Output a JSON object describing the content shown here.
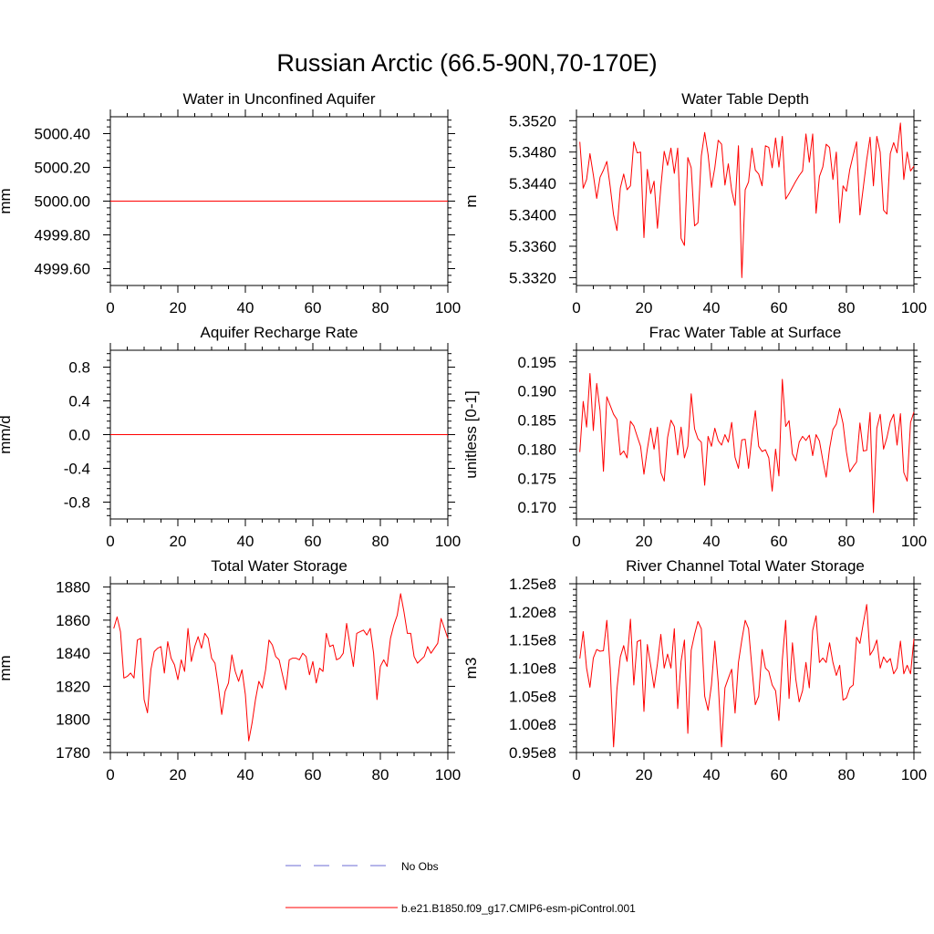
{
  "title": "Russian Arctic (66.5-90N,70-170E)",
  "legend": {
    "entries": [
      {
        "label": "No Obs",
        "color": "#6b6bd6",
        "style": "dashed"
      },
      {
        "label": "b.e21.B1850.f09_g17.CMIP6-esm-piControl.001",
        "color": "#ff0000",
        "style": "solid"
      }
    ]
  },
  "chart_data": [
    {
      "type": "line",
      "title": "Water in Unconfined Aquifer",
      "xlabel": "",
      "ylabel": "mm",
      "xlim": [
        0,
        100
      ],
      "ylim": [
        4999.5,
        5000.5
      ],
      "xticks": [
        0,
        20,
        40,
        60,
        80,
        100
      ],
      "yticks": [
        4999.6,
        4999.8,
        5000.0,
        5000.2,
        5000.4
      ],
      "yticklabels": [
        "4999.60",
        "4999.80",
        "5000.00",
        "5000.20",
        "5000.40"
      ],
      "series": [
        {
          "name": "b.e21.B1850.f09_g17.CMIP6-esm-piControl.001",
          "color": "#ff0000",
          "x": [
            0,
            100
          ],
          "y": [
            5000.0,
            5000.0
          ]
        }
      ]
    },
    {
      "type": "line",
      "title": "Water Table Depth",
      "xlabel": "",
      "ylabel": "m",
      "xlim": [
        0,
        100
      ],
      "ylim": [
        5.331,
        5.3525
      ],
      "xticks": [
        0,
        20,
        40,
        60,
        80,
        100
      ],
      "yticks": [
        5.332,
        5.336,
        5.34,
        5.344,
        5.348,
        5.352
      ],
      "yticklabels": [
        "5.3320",
        "5.3360",
        "5.3400",
        "5.3440",
        "5.3480",
        "5.3520"
      ],
      "series": [
        {
          "name": "b.e21.B1850.f09_g17.CMIP6-esm-piControl.001",
          "color": "#ff0000",
          "x": [
            1,
            2,
            3,
            4,
            5,
            6,
            7,
            8,
            9,
            10,
            11,
            12,
            13,
            14,
            15,
            16,
            17,
            18,
            19,
            20,
            21,
            22,
            23,
            24,
            25,
            26,
            27,
            28,
            29,
            30,
            31,
            32,
            33,
            34,
            35,
            36,
            37,
            38,
            39,
            40,
            41,
            42,
            43,
            44,
            45,
            46,
            47,
            48,
            49,
            50,
            51,
            52,
            53,
            54,
            55,
            56,
            57,
            58,
            59,
            60,
            61,
            62,
            63,
            64,
            65,
            66,
            67,
            68,
            69,
            70,
            71,
            72,
            73,
            74,
            75,
            76,
            77,
            78,
            79,
            80,
            81,
            82,
            83,
            84,
            85,
            86,
            87,
            88,
            89,
            90,
            91,
            92,
            93,
            94,
            95,
            96,
            97,
            98,
            99,
            100
          ],
          "y": [
            5.3493,
            5.3434,
            5.3445,
            5.3478,
            5.3451,
            5.3421,
            5.3448,
            5.3457,
            5.3468,
            5.3436,
            5.34,
            5.338,
            5.3434,
            5.3452,
            5.3432,
            5.3437,
            5.3493,
            5.3479,
            5.348,
            5.3371,
            5.3458,
            5.3427,
            5.3443,
            5.3383,
            5.3435,
            5.3481,
            5.3463,
            5.3485,
            5.3453,
            5.3485,
            5.337,
            5.3361,
            5.3473,
            5.346,
            5.3386,
            5.339,
            5.3475,
            5.3505,
            5.3477,
            5.3435,
            5.346,
            5.3495,
            5.349,
            5.3438,
            5.3465,
            5.3431,
            5.3412,
            5.3488,
            5.332,
            5.3432,
            5.3442,
            5.3485,
            5.3457,
            5.3452,
            5.3437,
            5.3488,
            5.3486,
            5.346,
            5.3498,
            5.3461,
            5.35,
            5.342,
            5.3427,
            5.3435,
            5.3443,
            5.345,
            5.3456,
            5.3503,
            5.3467,
            5.3503,
            5.3402,
            5.3449,
            5.3461,
            5.349,
            5.3486,
            5.3445,
            5.348,
            5.339,
            5.3437,
            5.343,
            5.3458,
            5.3476,
            5.3493,
            5.34,
            5.3435,
            5.347,
            5.3499,
            5.3437,
            5.35,
            5.348,
            5.3406,
            5.3401,
            5.3478,
            5.3492,
            5.3479,
            5.3517,
            5.3445,
            5.348,
            5.3456,
            5.3462
          ]
        }
      ]
    },
    {
      "type": "line",
      "title": "Aquifer Recharge Rate",
      "xlabel": "",
      "ylabel": "mm/d",
      "xlim": [
        0,
        100
      ],
      "ylim": [
        -1.0,
        1.0
      ],
      "xticks": [
        0,
        20,
        40,
        60,
        80,
        100
      ],
      "yticks": [
        -0.8,
        -0.4,
        0.0,
        0.4,
        0.8
      ],
      "yticklabels": [
        "-0.8",
        "-0.4",
        "0.0",
        "0.4",
        "0.8"
      ],
      "series": [
        {
          "name": "b.e21.B1850.f09_g17.CMIP6-esm-piControl.001",
          "color": "#ff0000",
          "x": [
            0,
            100
          ],
          "y": [
            0.0,
            0.0
          ]
        }
      ]
    },
    {
      "type": "line",
      "title": "Frac Water Table at Surface",
      "xlabel": "",
      "ylabel": "unitless [0-1]",
      "xlim": [
        0,
        100
      ],
      "ylim": [
        0.168,
        0.197
      ],
      "xticks": [
        0,
        20,
        40,
        60,
        80,
        100
      ],
      "yticks": [
        0.17,
        0.175,
        0.18,
        0.185,
        0.19,
        0.195
      ],
      "yticklabels": [
        "0.170",
        "0.175",
        "0.180",
        "0.185",
        "0.190",
        "0.195"
      ],
      "series": [
        {
          "name": "b.e21.B1850.f09_g17.CMIP6-esm-piControl.001",
          "color": "#ff0000",
          "x": [
            1,
            2,
            3,
            4,
            5,
            6,
            7,
            8,
            9,
            10,
            11,
            12,
            13,
            14,
            15,
            16,
            17,
            18,
            19,
            20,
            21,
            22,
            23,
            24,
            25,
            26,
            27,
            28,
            29,
            30,
            31,
            32,
            33,
            34,
            35,
            36,
            37,
            38,
            39,
            40,
            41,
            42,
            43,
            44,
            45,
            46,
            47,
            48,
            49,
            50,
            51,
            52,
            53,
            54,
            55,
            56,
            57,
            58,
            59,
            60,
            61,
            62,
            63,
            64,
            65,
            66,
            67,
            68,
            69,
            70,
            71,
            72,
            73,
            74,
            75,
            76,
            77,
            78,
            79,
            80,
            81,
            82,
            83,
            84,
            85,
            86,
            87,
            88,
            89,
            90,
            91,
            92,
            93,
            94,
            95,
            96,
            97,
            98,
            99,
            100
          ],
          "y": [
            0.1795,
            0.1882,
            0.1838,
            0.193,
            0.1832,
            0.1913,
            0.1866,
            0.1762,
            0.189,
            0.1875,
            0.186,
            0.1851,
            0.179,
            0.1797,
            0.1785,
            0.1848,
            0.184,
            0.1822,
            0.1805,
            0.1757,
            0.18,
            0.1836,
            0.18,
            0.1838,
            0.176,
            0.1745,
            0.182,
            0.185,
            0.1839,
            0.179,
            0.1838,
            0.1785,
            0.1805,
            0.1895,
            0.1835,
            0.1818,
            0.1812,
            0.1738,
            0.1822,
            0.1805,
            0.1836,
            0.1815,
            0.1807,
            0.1825,
            0.1812,
            0.1846,
            0.1786,
            0.1767,
            0.1816,
            0.1817,
            0.1767,
            0.1823,
            0.1866,
            0.1805,
            0.1796,
            0.1799,
            0.1785,
            0.1728,
            0.18,
            0.1754,
            0.192,
            0.1839,
            0.1849,
            0.1792,
            0.178,
            0.1812,
            0.1822,
            0.1815,
            0.1824,
            0.1789,
            0.1825,
            0.1814,
            0.1781,
            0.1752,
            0.1801,
            0.1834,
            0.1843,
            0.187,
            0.1844,
            0.1795,
            0.1761,
            0.177,
            0.1778,
            0.1845,
            0.1797,
            0.1798,
            0.1863,
            0.1691,
            0.1836,
            0.186,
            0.18,
            0.182,
            0.1847,
            0.186,
            0.1807,
            0.1861,
            0.176,
            0.1745,
            0.1846,
            0.1864
          ]
        }
      ]
    },
    {
      "type": "line",
      "title": "Total Water Storage",
      "xlabel": "",
      "ylabel": "mm",
      "xlim": [
        0,
        100
      ],
      "ylim": [
        1780,
        1882
      ],
      "xticks": [
        0,
        20,
        40,
        60,
        80,
        100
      ],
      "yticks": [
        1780,
        1800,
        1820,
        1840,
        1860,
        1880
      ],
      "yticklabels": [
        "1780",
        "1800",
        "1820",
        "1840",
        "1860",
        "1880"
      ],
      "series": [
        {
          "name": "b.e21.B1850.f09_g17.CMIP6-esm-piControl.001",
          "color": "#ff0000",
          "x": [
            1,
            2,
            3,
            4,
            5,
            6,
            7,
            8,
            9,
            10,
            11,
            12,
            13,
            14,
            15,
            16,
            17,
            18,
            19,
            20,
            21,
            22,
            23,
            24,
            25,
            26,
            27,
            28,
            29,
            30,
            31,
            32,
            33,
            34,
            35,
            36,
            37,
            38,
            39,
            40,
            41,
            42,
            43,
            44,
            45,
            46,
            47,
            48,
            49,
            50,
            51,
            52,
            53,
            54,
            55,
            56,
            57,
            58,
            59,
            60,
            61,
            62,
            63,
            64,
            65,
            66,
            67,
            68,
            69,
            70,
            71,
            72,
            73,
            74,
            75,
            76,
            77,
            78,
            79,
            80,
            81,
            82,
            83,
            84,
            85,
            86,
            87,
            88,
            89,
            90,
            91,
            92,
            93,
            94,
            95,
            96,
            97,
            98,
            99,
            100
          ],
          "y": [
            1855,
            1862,
            1853,
            1825,
            1826,
            1828,
            1825,
            1848,
            1849,
            1812,
            1804,
            1830,
            1841,
            1843,
            1844,
            1828,
            1847,
            1837,
            1833,
            1824,
            1836,
            1829,
            1855,
            1835,
            1844,
            1850,
            1843,
            1852,
            1849,
            1837,
            1834,
            1820,
            1803,
            1817,
            1822,
            1839,
            1829,
            1823,
            1830,
            1815,
            1787,
            1798,
            1812,
            1823,
            1819,
            1830,
            1848,
            1845,
            1838,
            1836,
            1827,
            1818,
            1836,
            1837,
            1837,
            1836,
            1840,
            1838,
            1827,
            1835,
            1822,
            1831,
            1829,
            1852,
            1844,
            1845,
            1836,
            1837,
            1840,
            1858,
            1845,
            1832,
            1852,
            1853,
            1854,
            1851,
            1855,
            1840,
            1812,
            1832,
            1836,
            1832,
            1849,
            1857,
            1863,
            1876,
            1865,
            1852,
            1852,
            1838,
            1834,
            1836,
            1838,
            1844,
            1840,
            1843,
            1846,
            1861,
            1855,
            1849
          ]
        }
      ]
    },
    {
      "type": "line",
      "title": "River Channel Total Water Storage",
      "xlabel": "",
      "ylabel": "m3",
      "xlim": [
        0,
        100
      ],
      "ylim": [
        95000000.0,
        125000000.0
      ],
      "xticks": [
        0,
        20,
        40,
        60,
        80,
        100
      ],
      "yticks": [
        95000000.0,
        100000000.0,
        105000000.0,
        110000000.0,
        115000000.0,
        120000000.0,
        125000000.0
      ],
      "yticklabels": [
        "0.95e8",
        "1.00e8",
        "1.05e8",
        "1.10e8",
        "1.15e8",
        "1.20e8",
        "1.25e8"
      ],
      "series": [
        {
          "name": "b.e21.B1850.f09_g17.CMIP6-esm-piControl.001",
          "color": "#ff0000",
          "x": [
            1,
            2,
            3,
            4,
            5,
            6,
            7,
            8,
            9,
            10,
            11,
            12,
            13,
            14,
            15,
            16,
            17,
            18,
            19,
            20,
            21,
            22,
            23,
            24,
            25,
            26,
            27,
            28,
            29,
            30,
            31,
            32,
            33,
            34,
            35,
            36,
            37,
            38,
            39,
            40,
            41,
            42,
            43,
            44,
            45,
            46,
            47,
            48,
            49,
            50,
            51,
            52,
            53,
            54,
            55,
            56,
            57,
            58,
            59,
            60,
            61,
            62,
            63,
            64,
            65,
            66,
            67,
            68,
            69,
            70,
            71,
            72,
            73,
            74,
            75,
            76,
            77,
            78,
            79,
            80,
            81,
            82,
            83,
            84,
            85,
            86,
            87,
            88,
            89,
            90,
            91,
            92,
            93,
            94,
            95,
            96,
            97,
            98,
            99,
            100
          ],
          "y": [
            111700000.0,
            116500000.0,
            110000000.0,
            106600000.0,
            111800000.0,
            113300000.0,
            113000000.0,
            113100000.0,
            118500000.0,
            110000000.0,
            96000000.0,
            106300000.0,
            112000000.0,
            114000000.0,
            111200000.0,
            118700000.0,
            107000000.0,
            114700000.0,
            115000000.0,
            102300000.0,
            114200000.0,
            110500000.0,
            106500000.0,
            110800000.0,
            116000000.0,
            110000000.0,
            112500000.0,
            110000000.0,
            117000000.0,
            102800000.0,
            111200000.0,
            115000000.0,
            98400000.0,
            113200000.0,
            116000000.0,
            118300000.0,
            117000000.0,
            105000000.0,
            102500000.0,
            107000000.0,
            114800000.0,
            107500000.0,
            96000000.0,
            106500000.0,
            108200000.0,
            109800000.0,
            102000000.0,
            111000000.0,
            115000000.0,
            118500000.0,
            117000000.0,
            110000000.0,
            103500000.0,
            105000000.0,
            113300000.0,
            110000000.0,
            109400000.0,
            107000000.0,
            106000000.0,
            100700000.0,
            111500000.0,
            118500000.0,
            104600000.0,
            114500000.0,
            108000000.0,
            104000000.0,
            106000000.0,
            111000000.0,
            106500000.0,
            116700000.0,
            119300000.0,
            111000000.0,
            111800000.0,
            111000000.0,
            114500000.0,
            111000000.0,
            108700000.0,
            110500000.0,
            104300000.0,
            104700000.0,
            106500000.0,
            107000000.0,
            115500000.0,
            114400000.0,
            118000000.0,
            121300000.0,
            112300000.0,
            113300000.0,
            115000000.0,
            110000000.0,
            112000000.0,
            111000000.0,
            111700000.0,
            109000000.0,
            110000000.0,
            114800000.0,
            109000000.0,
            110500000.0,
            109000000.0,
            115200000.0
          ]
        }
      ]
    }
  ]
}
